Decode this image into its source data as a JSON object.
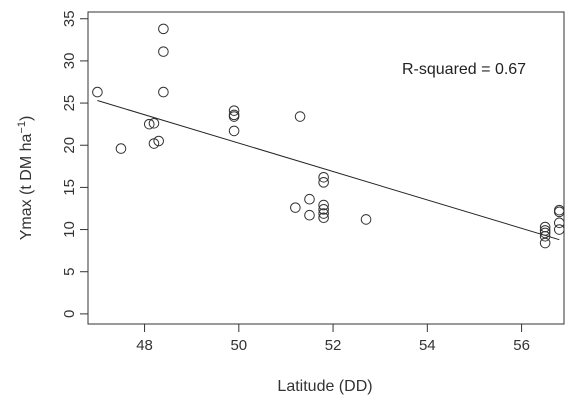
{
  "chart_data": {
    "type": "scatter",
    "xlabel": "Latitude (DD)",
    "ylabel_main": "Ymax (t DM ha",
    "ylabel_sup": "−1",
    "ylabel_close": ")",
    "annotation": "R-squared  =  0.67",
    "xlim": [
      46.8,
      56.9
    ],
    "ylim": [
      -1.2,
      35.8
    ],
    "x_ticks": [
      48,
      50,
      52,
      54,
      56
    ],
    "y_ticks": [
      0,
      5,
      10,
      15,
      20,
      25,
      30,
      35
    ],
    "x_tick_labels": [
      "48",
      "50",
      "52",
      "54",
      "56"
    ],
    "y_tick_labels": [
      "0",
      "5",
      "10",
      "15",
      "20",
      "25",
      "30",
      "35"
    ],
    "points": [
      {
        "x": 47.0,
        "y": 26.3
      },
      {
        "x": 47.5,
        "y": 19.6
      },
      {
        "x": 48.1,
        "y": 22.5
      },
      {
        "x": 48.2,
        "y": 22.6
      },
      {
        "x": 48.2,
        "y": 20.2
      },
      {
        "x": 48.3,
        "y": 20.5
      },
      {
        "x": 48.4,
        "y": 33.8
      },
      {
        "x": 48.4,
        "y": 31.1
      },
      {
        "x": 48.4,
        "y": 26.3
      },
      {
        "x": 49.9,
        "y": 24.1
      },
      {
        "x": 49.9,
        "y": 23.6
      },
      {
        "x": 49.9,
        "y": 23.4
      },
      {
        "x": 49.9,
        "y": 21.7
      },
      {
        "x": 51.2,
        "y": 12.6
      },
      {
        "x": 51.3,
        "y": 23.4
      },
      {
        "x": 51.5,
        "y": 13.6
      },
      {
        "x": 51.5,
        "y": 11.7
      },
      {
        "x": 51.8,
        "y": 16.2
      },
      {
        "x": 51.8,
        "y": 15.6
      },
      {
        "x": 51.8,
        "y": 12.9
      },
      {
        "x": 51.8,
        "y": 12.4
      },
      {
        "x": 51.8,
        "y": 11.9
      },
      {
        "x": 51.8,
        "y": 11.4
      },
      {
        "x": 52.7,
        "y": 11.2
      },
      {
        "x": 56.5,
        "y": 10.3
      },
      {
        "x": 56.5,
        "y": 9.9
      },
      {
        "x": 56.5,
        "y": 9.6
      },
      {
        "x": 56.5,
        "y": 9.2
      },
      {
        "x": 56.5,
        "y": 8.4
      },
      {
        "x": 56.8,
        "y": 12.3
      },
      {
        "x": 56.8,
        "y": 12.1
      },
      {
        "x": 56.8,
        "y": 10.8
      },
      {
        "x": 56.8,
        "y": 10.0
      }
    ],
    "regression_line": {
      "x": [
        47.0,
        56.8
      ],
      "y": [
        25.3,
        8.8
      ]
    },
    "colors": {
      "points": "#333333",
      "line": "#222222",
      "axis": "#333333"
    }
  }
}
